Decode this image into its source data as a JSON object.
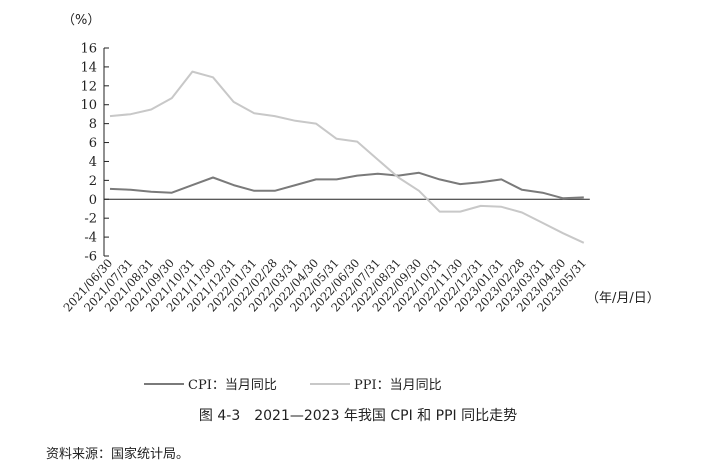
{
  "chart_data": {
    "type": "line",
    "y_unit": "（%）",
    "x_unit": "（年/月/日）",
    "ylim": [
      -6,
      16
    ],
    "yticks": [
      -6,
      -4,
      -2,
      0,
      2,
      4,
      6,
      8,
      10,
      12,
      14,
      16
    ],
    "grid": false,
    "legend_position": "bottom",
    "categories": [
      "2021/06/30",
      "2021/07/31",
      "2021/08/31",
      "2021/09/30",
      "2021/10/31",
      "2021/11/30",
      "2021/12/31",
      "2022/01/31",
      "2022/02/28",
      "2022/03/31",
      "2022/04/30",
      "2022/05/31",
      "2022/06/30",
      "2022/07/31",
      "2022/08/31",
      "2022/09/30",
      "2022/10/31",
      "2022/11/30",
      "2022/12/31",
      "2023/01/31",
      "2023/02/28",
      "2023/03/31",
      "2023/04/30",
      "2023/05/31"
    ],
    "series": [
      {
        "name": "CPI：当月同比",
        "color": "#7a7a7a",
        "values": [
          1.1,
          1.0,
          0.8,
          0.7,
          1.5,
          2.3,
          1.5,
          0.9,
          0.9,
          1.5,
          2.1,
          2.1,
          2.5,
          2.7,
          2.5,
          2.8,
          2.1,
          1.6,
          1.8,
          2.1,
          1.0,
          0.7,
          0.1,
          0.2
        ]
      },
      {
        "name": "PPI：当月同比",
        "color": "#c8c8c8",
        "values": [
          8.8,
          9.0,
          9.5,
          10.7,
          13.5,
          12.9,
          10.3,
          9.1,
          8.8,
          8.3,
          8.0,
          6.4,
          6.1,
          4.2,
          2.3,
          0.9,
          -1.3,
          -1.3,
          -0.7,
          -0.8,
          -1.4,
          -2.5,
          -3.6,
          -4.6
        ]
      }
    ],
    "caption": "图 4-3　2021—2023 年我国 CPI 和 PPI 同比走势",
    "source": "资料来源：国家统计局。"
  }
}
